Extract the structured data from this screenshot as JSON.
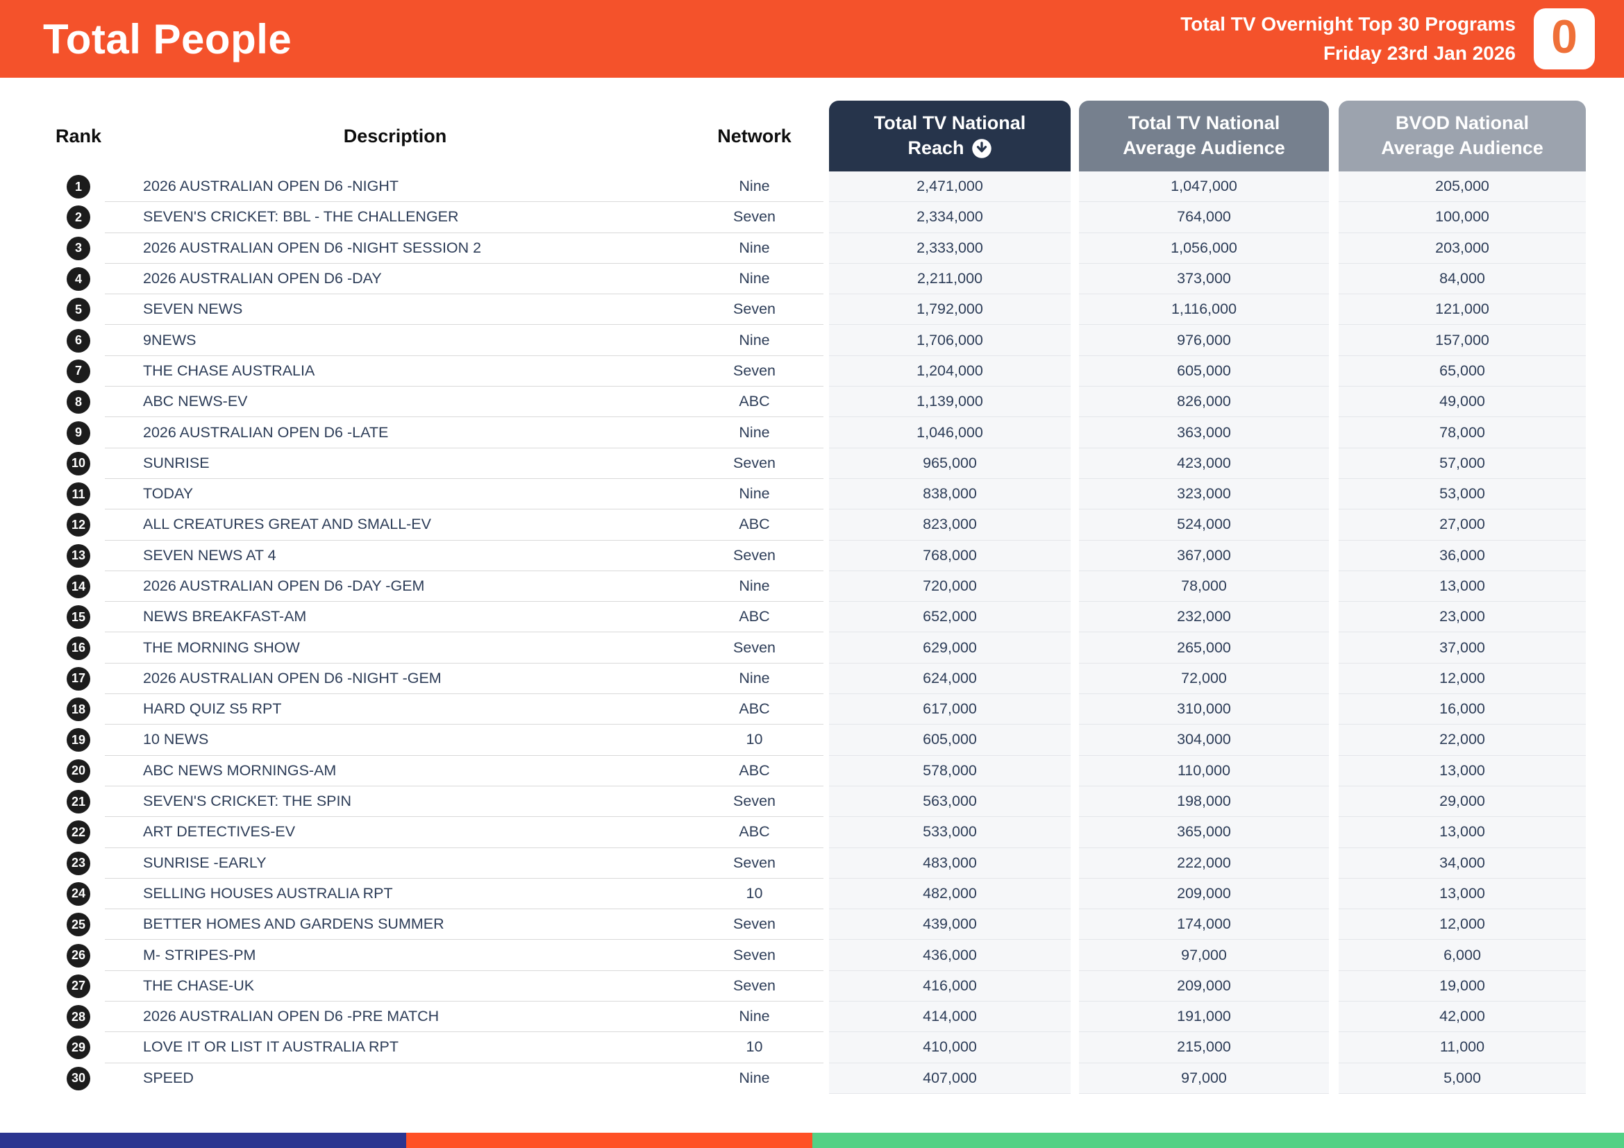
{
  "header": {
    "title": "Total People",
    "subtitle_line1": "Total TV Overnight Top 30 Programs",
    "subtitle_line2": "Friday 23rd Jan 2026",
    "logo_text": "0"
  },
  "colors": {
    "topbar_orange": "#F4522B",
    "pill_reach_navy": "#26344B",
    "pill_avg_slate": "#76808E",
    "pill_bvod_gray": "#9CA3AE",
    "row_text_navy": "#2C3C57",
    "rank_badge_black": "#1C1C1C",
    "numeric_cell_bg": "#F6F7F9"
  },
  "table": {
    "columns": {
      "rank": "Rank",
      "description": "Description",
      "network": "Network",
      "reach_line1": "Total TV National",
      "reach_line2": "Reach",
      "reach_sort_icon": "arrow-down-circle-icon",
      "avg_line1": "Total TV National",
      "avg_line2": "Average Audience",
      "bvod_line1": "BVOD National",
      "bvod_line2": "Average Audience"
    },
    "rows": [
      {
        "rank": 1,
        "description": "2026 AUSTRALIAN OPEN D6 -NIGHT",
        "network": "Nine",
        "reach": "2,471,000",
        "avg": "1,047,000",
        "bvod": "205,000"
      },
      {
        "rank": 2,
        "description": "SEVEN'S CRICKET: BBL - THE CHALLENGER",
        "network": "Seven",
        "reach": "2,334,000",
        "avg": "764,000",
        "bvod": "100,000"
      },
      {
        "rank": 3,
        "description": "2026 AUSTRALIAN OPEN D6 -NIGHT SESSION 2",
        "network": "Nine",
        "reach": "2,333,000",
        "avg": "1,056,000",
        "bvod": "203,000"
      },
      {
        "rank": 4,
        "description": "2026 AUSTRALIAN OPEN D6 -DAY",
        "network": "Nine",
        "reach": "2,211,000",
        "avg": "373,000",
        "bvod": "84,000"
      },
      {
        "rank": 5,
        "description": "SEVEN NEWS",
        "network": "Seven",
        "reach": "1,792,000",
        "avg": "1,116,000",
        "bvod": "121,000"
      },
      {
        "rank": 6,
        "description": "9NEWS",
        "network": "Nine",
        "reach": "1,706,000",
        "avg": "976,000",
        "bvod": "157,000"
      },
      {
        "rank": 7,
        "description": "THE CHASE AUSTRALIA",
        "network": "Seven",
        "reach": "1,204,000",
        "avg": "605,000",
        "bvod": "65,000"
      },
      {
        "rank": 8,
        "description": "ABC NEWS-EV",
        "network": "ABC",
        "reach": "1,139,000",
        "avg": "826,000",
        "bvod": "49,000"
      },
      {
        "rank": 9,
        "description": "2026 AUSTRALIAN OPEN D6 -LATE",
        "network": "Nine",
        "reach": "1,046,000",
        "avg": "363,000",
        "bvod": "78,000"
      },
      {
        "rank": 10,
        "description": "SUNRISE",
        "network": "Seven",
        "reach": "965,000",
        "avg": "423,000",
        "bvod": "57,000"
      },
      {
        "rank": 11,
        "description": "TODAY",
        "network": "Nine",
        "reach": "838,000",
        "avg": "323,000",
        "bvod": "53,000"
      },
      {
        "rank": 12,
        "description": "ALL CREATURES GREAT AND SMALL-EV",
        "network": "ABC",
        "reach": "823,000",
        "avg": "524,000",
        "bvod": "27,000"
      },
      {
        "rank": 13,
        "description": "SEVEN NEWS AT 4",
        "network": "Seven",
        "reach": "768,000",
        "avg": "367,000",
        "bvod": "36,000"
      },
      {
        "rank": 14,
        "description": "2026 AUSTRALIAN OPEN D6 -DAY -GEM",
        "network": "Nine",
        "reach": "720,000",
        "avg": "78,000",
        "bvod": "13,000"
      },
      {
        "rank": 15,
        "description": "NEWS BREAKFAST-AM",
        "network": "ABC",
        "reach": "652,000",
        "avg": "232,000",
        "bvod": "23,000"
      },
      {
        "rank": 16,
        "description": "THE MORNING SHOW",
        "network": "Seven",
        "reach": "629,000",
        "avg": "265,000",
        "bvod": "37,000"
      },
      {
        "rank": 17,
        "description": "2026 AUSTRALIAN OPEN D6 -NIGHT -GEM",
        "network": "Nine",
        "reach": "624,000",
        "avg": "72,000",
        "bvod": "12,000"
      },
      {
        "rank": 18,
        "description": "HARD QUIZ S5 RPT",
        "network": "ABC",
        "reach": "617,000",
        "avg": "310,000",
        "bvod": "16,000"
      },
      {
        "rank": 19,
        "description": "10 NEWS",
        "network": "10",
        "reach": "605,000",
        "avg": "304,000",
        "bvod": "22,000"
      },
      {
        "rank": 20,
        "description": "ABC NEWS MORNINGS-AM",
        "network": "ABC",
        "reach": "578,000",
        "avg": "110,000",
        "bvod": "13,000"
      },
      {
        "rank": 21,
        "description": "SEVEN'S CRICKET: THE SPIN",
        "network": "Seven",
        "reach": "563,000",
        "avg": "198,000",
        "bvod": "29,000"
      },
      {
        "rank": 22,
        "description": "ART DETECTIVES-EV",
        "network": "ABC",
        "reach": "533,000",
        "avg": "365,000",
        "bvod": "13,000"
      },
      {
        "rank": 23,
        "description": "SUNRISE -EARLY",
        "network": "Seven",
        "reach": "483,000",
        "avg": "222,000",
        "bvod": "34,000"
      },
      {
        "rank": 24,
        "description": "SELLING HOUSES AUSTRALIA RPT",
        "network": "10",
        "reach": "482,000",
        "avg": "209,000",
        "bvod": "13,000"
      },
      {
        "rank": 25,
        "description": "BETTER HOMES AND GARDENS SUMMER",
        "network": "Seven",
        "reach": "439,000",
        "avg": "174,000",
        "bvod": "12,000"
      },
      {
        "rank": 26,
        "description": "M- STRIPES-PM",
        "network": "Seven",
        "reach": "436,000",
        "avg": "97,000",
        "bvod": "6,000"
      },
      {
        "rank": 27,
        "description": "THE CHASE-UK",
        "network": "Seven",
        "reach": "416,000",
        "avg": "209,000",
        "bvod": "19,000"
      },
      {
        "rank": 28,
        "description": "2026 AUSTRALIAN OPEN D6 -PRE MATCH",
        "network": "Nine",
        "reach": "414,000",
        "avg": "191,000",
        "bvod": "42,000"
      },
      {
        "rank": 29,
        "description": "LOVE IT OR LIST IT AUSTRALIA RPT",
        "network": "10",
        "reach": "410,000",
        "avg": "215,000",
        "bvod": "11,000"
      },
      {
        "rank": 30,
        "description": "SPEED",
        "network": "Nine",
        "reach": "407,000",
        "avg": "97,000",
        "bvod": "5,000"
      }
    ]
  },
  "footer": {
    "segments": [
      {
        "color": "#2B3590",
        "width": "25%"
      },
      {
        "color": "#FF5126",
        "width": "25%"
      },
      {
        "color": "#53D185",
        "width": "50%"
      }
    ]
  }
}
